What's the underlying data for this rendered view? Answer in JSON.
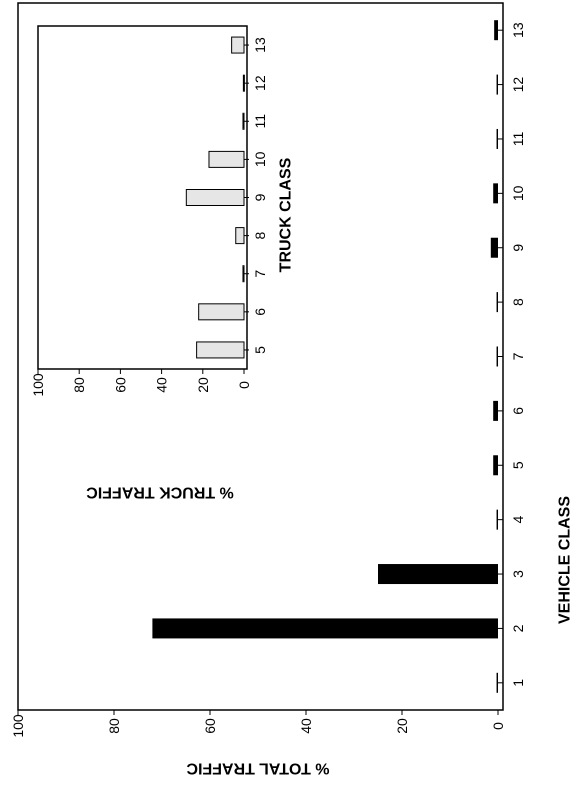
{
  "chart_data": [
    {
      "type": "bar",
      "orientation": "rotated-90-ccw",
      "categories": [
        "1",
        "2",
        "3",
        "4",
        "5",
        "6",
        "7",
        "8",
        "9",
        "10",
        "11",
        "12",
        "13"
      ],
      "values": [
        0.3,
        72,
        25,
        0.3,
        1.0,
        1.0,
        0.3,
        0.3,
        1.5,
        1.0,
        0.3,
        0.3,
        0.8
      ],
      "bar_color": "#000000",
      "xlabel": "VEHICLE CLASS",
      "ylabel": "% TOTAL TRAFFIC",
      "ylim": [
        0,
        100
      ],
      "yticks": [
        "0",
        "20",
        "40",
        "60",
        "80",
        "100"
      ],
      "grid": false
    },
    {
      "type": "bar",
      "orientation": "rotated-90-ccw",
      "categories": [
        "5",
        "6",
        "7",
        "8",
        "9",
        "10",
        "11",
        "12",
        "13"
      ],
      "values": [
        23,
        22,
        0.5,
        4,
        28,
        17,
        0.5,
        0.3,
        6
      ],
      "bar_color": "#e6e6e6",
      "bar_stroke": "#000000",
      "xlabel": "TRUCK CLASS",
      "ylabel": "% TRUCK TRAFFIC",
      "ylim": [
        0,
        100
      ],
      "yticks": [
        "0",
        "20",
        "40",
        "60",
        "80",
        "100"
      ],
      "grid": false
    }
  ]
}
